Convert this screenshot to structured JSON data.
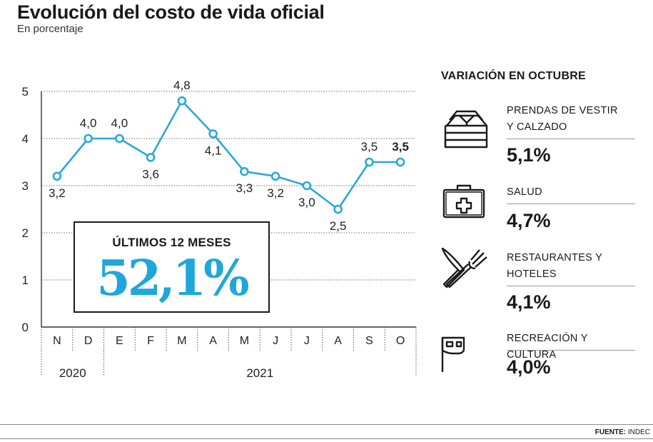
{
  "title": "Evolución del costo de vida oficial",
  "subtitle": "En porcentaje",
  "highlight": {
    "label": "ÚLTIMOS 12 MESES",
    "value": "52,1%"
  },
  "panel": {
    "title": "VARIACIÓN EN OCTUBRE",
    "categories": [
      {
        "label_lines": [
          "PRENDAS DE VESTIR",
          "Y CALZADO"
        ],
        "value": "5,1%",
        "icon": "folded-clothes-icon"
      },
      {
        "label_lines": [
          "SALUD"
        ],
        "value": "4,7%",
        "icon": "first-aid-kit-icon"
      },
      {
        "label_lines": [
          "RESTAURANTES Y",
          "HOTELES"
        ],
        "value": "4,1%",
        "icon": "knife-fork-icon"
      },
      {
        "label_lines": [
          "RECREACIÓN Y CULTURA"
        ],
        "value": "4,0%",
        "icon": "mask-icon"
      }
    ]
  },
  "source": {
    "label": "FUENTE:",
    "value": "INDEC"
  },
  "colors": {
    "line": "#2aa8d8",
    "marker_fill": "#ffffff",
    "highlight": "#1fa6db"
  },
  "chart_data": {
    "type": "line",
    "categories": [
      "N",
      "D",
      "E",
      "F",
      "M",
      "A",
      "M",
      "J",
      "J",
      "A",
      "S",
      "O"
    ],
    "years": [
      {
        "label": "2020",
        "months": 2
      },
      {
        "label": "2021",
        "months": 10
      }
    ],
    "series": [
      {
        "values": [
          3.2,
          4.0,
          4.0,
          3.6,
          4.8,
          4.1,
          3.3,
          3.2,
          3.0,
          2.5,
          3.5,
          3.5
        ],
        "labels": [
          "3,2",
          "4,0",
          "4,0",
          "3,6",
          "4,8",
          "4,1",
          "3,3",
          "3,2",
          "3,0",
          "2,5",
          "3,5",
          "3,5"
        ]
      }
    ],
    "yticks": [
      0,
      1,
      2,
      3,
      4,
      5
    ],
    "ylim": [
      0,
      5
    ],
    "grid": true
  }
}
